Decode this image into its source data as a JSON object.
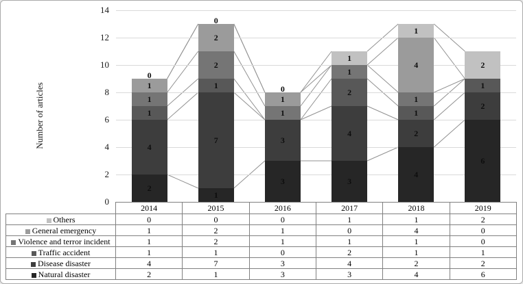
{
  "chart_data": {
    "type": "bar",
    "variant": "stacked-column-with-series-lines-and-data-table",
    "title": "",
    "ylabel": "Number of articles",
    "xlabel": "",
    "ylim": [
      0,
      14
    ],
    "yticks": [
      0,
      2,
      4,
      6,
      8,
      10,
      12,
      14
    ],
    "grid": true,
    "series_lines": true,
    "legend_position": "table-left-column",
    "categories": [
      "2014",
      "2015",
      "2016",
      "2017",
      "2018",
      "2019"
    ],
    "series": [
      {
        "name": "Others",
        "color": "#c1c1c1",
        "values": [
          0,
          0,
          0,
          1,
          1,
          2
        ]
      },
      {
        "name": "General emergency",
        "color": "#9b9b9b",
        "values": [
          1,
          2,
          1,
          0,
          4,
          0
        ]
      },
      {
        "name": "Violence and terror incident",
        "color": "#757575",
        "values": [
          1,
          2,
          1,
          1,
          1,
          0
        ]
      },
      {
        "name": "Traffic accident",
        "color": "#585858",
        "values": [
          1,
          1,
          0,
          2,
          1,
          1
        ]
      },
      {
        "name": "Disease disaster",
        "color": "#3d3d3d",
        "values": [
          4,
          7,
          3,
          4,
          2,
          2
        ]
      },
      {
        "name": "Natural disaster",
        "color": "#262626",
        "values": [
          2,
          1,
          3,
          3,
          4,
          6
        ]
      }
    ],
    "stack_order_bottom_to_top": [
      "Natural disaster",
      "Disease disaster",
      "Traffic accident",
      "Violence and terror incident",
      "General emergency",
      "Others"
    ],
    "colors": {
      "gridline": "#d9d9d9",
      "series_line": "#919191",
      "table_border": "#7f7f7f",
      "label_text": "#0d0d0d"
    }
  }
}
